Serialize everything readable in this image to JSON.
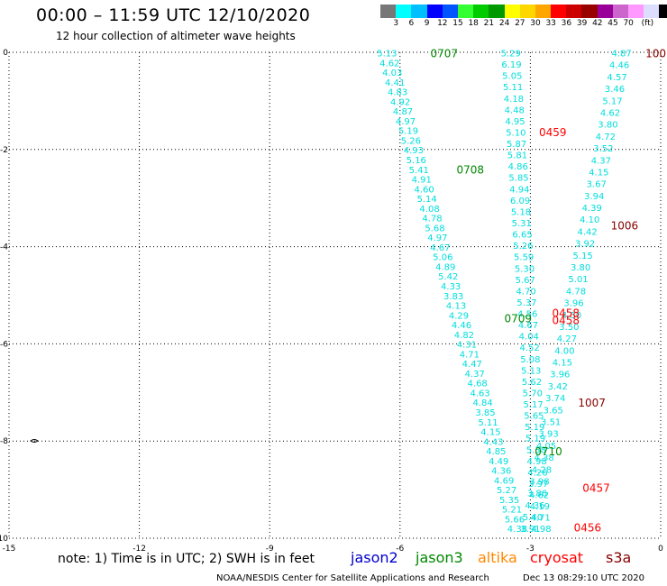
{
  "header": {
    "title": "00:00 – 11:59 UTC 12/10/2020",
    "subtitle": "12 hour collection of altimeter wave heights"
  },
  "colorbar": {
    "colors": [
      "#777777",
      "#00ffff",
      "#00bfff",
      "#0000ff",
      "#0055ff",
      "#33ff33",
      "#00cc00",
      "#009900",
      "#ffff00",
      "#ffd700",
      "#ffa500",
      "#ff0000",
      "#cc0000",
      "#990000",
      "#990099",
      "#cc66cc",
      "#ff99ff",
      "#ddddff",
      "#000000"
    ],
    "labels": [
      "3",
      "6",
      "9",
      "12",
      "15",
      "18",
      "21",
      "24",
      "27",
      "30",
      "33",
      "36",
      "39",
      "42",
      "45",
      "70",
      "(ft)"
    ]
  },
  "axes": {
    "x_ticks": [
      "-15",
      "-12",
      "-9",
      "-6",
      "-3",
      "0"
    ],
    "y_ticks": [
      "0",
      "-2",
      "-4",
      "-6",
      "-8",
      "-10"
    ],
    "x_range": [
      -15,
      0
    ],
    "y_range": [
      -10,
      0
    ]
  },
  "chart_data": {
    "type": "scatter",
    "title": "12 hour collection of altimeter wave heights",
    "xlim": [
      -15,
      0
    ],
    "ylim": [
      -10,
      0
    ],
    "grid": true,
    "colors": {
      "jason3": "#008800",
      "cryosat": "#ff0000",
      "s3a": "#880000",
      "swh": "#00dddd"
    },
    "time_labels": [
      {
        "text": "0707",
        "x": -5.3,
        "y": -0.01,
        "sat": "jason3"
      },
      {
        "text": "0708",
        "x": -4.7,
        "y": -2.4,
        "sat": "jason3"
      },
      {
        "text": "0709",
        "x": -3.6,
        "y": -5.46,
        "sat": "jason3"
      },
      {
        "text": "0710",
        "x": -2.9,
        "y": -8.2,
        "sat": "jason3"
      },
      {
        "text": "0459",
        "x": -2.8,
        "y": -1.63,
        "sat": "cryosat"
      },
      {
        "text": "0458",
        "x": -2.5,
        "y": -5.35,
        "sat": "cryosat"
      },
      {
        "text": "0458",
        "x": -2.5,
        "y": -5.5,
        "sat": "cryosat"
      },
      {
        "text": "0457",
        "x": -1.8,
        "y": -8.95,
        "sat": "cryosat"
      },
      {
        "text": "0456",
        "x": -2.0,
        "y": -9.77,
        "sat": "cryosat"
      },
      {
        "text": "100",
        "x": -0.35,
        "y": -0.01,
        "sat": "s3a"
      },
      {
        "text": "1006",
        "x": -1.15,
        "y": -3.55,
        "sat": "s3a"
      },
      {
        "text": "1007",
        "x": -1.9,
        "y": -7.2,
        "sat": "s3a"
      }
    ],
    "tracks": [
      {
        "name": "jason3",
        "start": {
          "x": -6.3,
          "y": -0.01
        },
        "end": {
          "x": -3.3,
          "y": -9.8
        },
        "values": [
          "5.13",
          "4.62",
          "4.03",
          "4.41",
          "4.83",
          "4.92",
          "4.87",
          "4.97",
          "5.19",
          "5.26",
          "4.93",
          "5.16",
          "5.41",
          "4.91",
          "4.60",
          "5.14",
          "4.08",
          "4.78",
          "5.68",
          "4.97",
          "4.67",
          "5.06",
          "4.89",
          "5.42",
          "4.33",
          "3.83",
          "4.13",
          "4.29",
          "4.46",
          "4.82",
          "4.31",
          "4.71",
          "4.47",
          "4.37",
          "4.68",
          "4.63",
          "4.84",
          "3.85",
          "5.11",
          "4.15",
          "4.43",
          "4.85",
          "4.49",
          "4.36",
          "4.69",
          "5.27",
          "5.35",
          "5.21",
          "5.66",
          "4.38"
        ]
      },
      {
        "name": "cryosat",
        "start": {
          "x": -3.45,
          "y": -0.01
        },
        "end": {
          "x": -2.75,
          "y": -9.8
        },
        "values": [
          "5.29",
          "6.19",
          "5.05",
          "5.11",
          "4.18",
          "4.48",
          "4.95",
          "5.10",
          "5.87",
          "5.81",
          "4.86",
          "5.85",
          "4.94",
          "6.09",
          "5.18",
          "5.31",
          "6.65",
          "5.26",
          "5.59",
          "5.30",
          "5.67",
          "4.70",
          "5.37",
          "4.56",
          "4.67",
          "4.04",
          "4.52",
          "5.08",
          "5.13",
          "5.62",
          "5.70",
          "5.17",
          "5.65",
          "5.19",
          "5.19",
          "5.38",
          "4.98",
          "4.26",
          "3.97",
          "4.62",
          "4.19",
          "4.71",
          "4.98"
        ]
      },
      {
        "name": "s3a",
        "start": {
          "x": -0.9,
          "y": -0.01
        },
        "end": {
          "x": -3.0,
          "y": -9.8
        },
        "values": [
          "4.87",
          "4.46",
          "4.57",
          "3.46",
          "5.17",
          "4.62",
          "3.80",
          "4.72",
          "3.52",
          "4.37",
          "4.15",
          "3.67",
          "3.94",
          "4.39",
          "4.10",
          "4.42",
          "3.92",
          "5.15",
          "3.80",
          "5.01",
          "4.78",
          "3.96",
          "4.50",
          "3.50",
          "4.27",
          "4.00",
          "4.15",
          "3.96",
          "3.42",
          "3.74",
          "3.65",
          "3.51",
          "3.93",
          "4.05",
          "4.38",
          "4.28",
          "3.98",
          "3.86",
          "4.36",
          "5.40",
          "3.91"
        ]
      }
    ]
  },
  "footer": {
    "note": "note:  1) Time is in UTC;  2) SWH is in feet",
    "legend": [
      {
        "text": "jason2",
        "color": "#0000cc",
        "left": 389
      },
      {
        "text": "jason3",
        "color": "#008800",
        "left": 461
      },
      {
        "text": "altika",
        "color": "#ff8800",
        "left": 530
      },
      {
        "text": "cryosat",
        "color": "#ff0000",
        "left": 588
      },
      {
        "text": "s3a",
        "color": "#880000",
        "left": 672
      }
    ],
    "credit": "NOAA/NESDIS Center for Satellite Applications and Research",
    "timestamp": "Dec 13 08:29:10 UTC 2020"
  }
}
